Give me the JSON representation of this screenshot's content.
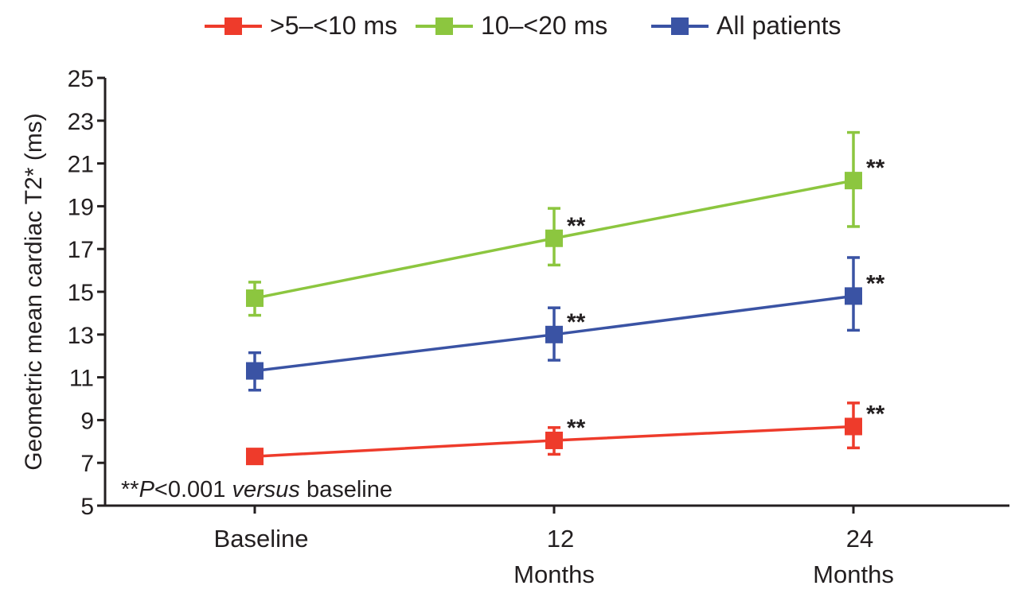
{
  "chart_data": {
    "type": "line",
    "title": "",
    "xlabel": "",
    "ylabel": "Geometric mean cardiac T2* (ms)",
    "ylim": [
      5,
      25
    ],
    "yticks": [
      "5",
      "7",
      "9",
      "11",
      "13",
      "15",
      "17",
      "19",
      "21",
      "23",
      "25"
    ],
    "categories": [
      {
        "line1": "Baseline",
        "line2": ""
      },
      {
        "line1": "12",
        "line2": "Months"
      },
      {
        "line1": "24",
        "line2": "Months"
      }
    ],
    "series": [
      {
        "name": ">5–<10 ms",
        "color": "#ee3b2b",
        "values": [
          7.3,
          8.05,
          8.7
        ],
        "err_low": [
          7.0,
          7.4,
          7.7
        ],
        "err_high": [
          7.6,
          8.65,
          9.8
        ],
        "sig": [
          "",
          "**",
          "**"
        ]
      },
      {
        "name": "10–<20 ms",
        "color": "#8cc63f",
        "values": [
          14.7,
          17.5,
          20.2
        ],
        "err_low": [
          13.9,
          16.25,
          18.05
        ],
        "err_high": [
          15.45,
          18.9,
          22.45
        ],
        "sig": [
          "",
          "**",
          "**"
        ]
      },
      {
        "name": "All patients",
        "color": "#3a53a4",
        "values": [
          11.3,
          13.0,
          14.8
        ],
        "err_low": [
          10.4,
          11.8,
          13.2
        ],
        "err_high": [
          12.15,
          14.25,
          16.6
        ],
        "sig": [
          "",
          "**",
          "**"
        ]
      }
    ],
    "footnote": {
      "stars": "**",
      "p": "P",
      "comparison": "<0.001 ",
      "versus": "versus",
      "rest": " baseline"
    },
    "legend_position": "top-center"
  }
}
